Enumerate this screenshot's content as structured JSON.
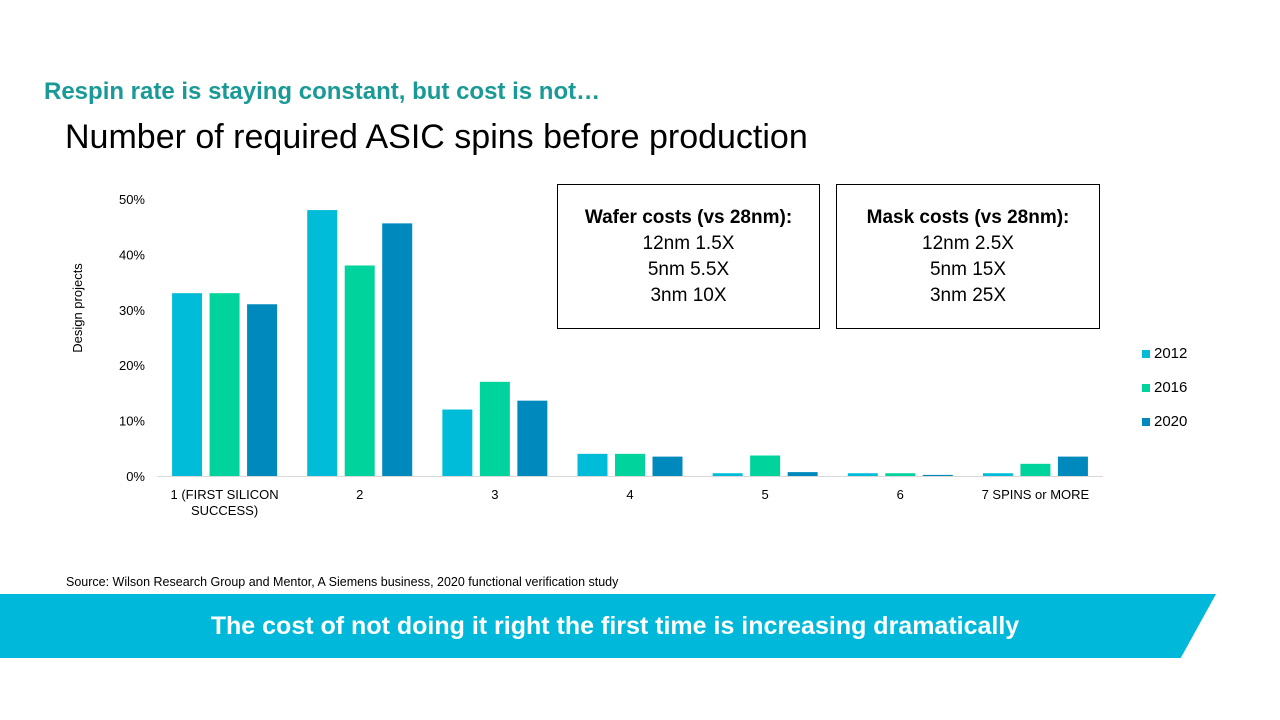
{
  "slide": {
    "subtitle": "Respin rate is staying constant, but cost is not…",
    "title": "Number of required ASIC spins before production",
    "source": "Source: Wilson Research Group and Mentor, A Siemens business, 2020 functional verification study",
    "banner": "The cost of not doing it right the first time is increasing dramatically"
  },
  "wafer_box": {
    "heading": "Wafer costs (vs 28nm):",
    "lines": [
      "12nm 1.5X",
      "5nm 5.5X",
      "3nm 10X"
    ]
  },
  "mask_box": {
    "heading": "Mask costs (vs 28nm):",
    "lines": [
      "12nm 2.5X",
      "5nm 15X",
      "3nm 25X"
    ]
  },
  "colors": {
    "subtitle": "#1a9a96",
    "banner": "#00b8d9",
    "series": [
      "#00bcd8",
      "#00d49c",
      "#0089bd"
    ]
  },
  "chart_data": {
    "type": "bar",
    "ylabel": "Design projects",
    "xlabel": "",
    "ylim": [
      0,
      50
    ],
    "yticks": [
      0,
      10,
      20,
      30,
      40,
      50
    ],
    "ytick_labels": [
      "0%",
      "10%",
      "20%",
      "30%",
      "40%",
      "50%"
    ],
    "categories": [
      "1 (FIRST SILICON SUCCESS)",
      "2",
      "3",
      "4",
      "5",
      "6",
      "7 SPINS or MORE"
    ],
    "series": [
      {
        "name": "2012",
        "values": [
          33,
          48,
          12,
          4,
          0.5,
          0.5,
          0.5
        ]
      },
      {
        "name": "2016",
        "values": [
          33,
          38,
          17,
          4,
          3.7,
          0.5,
          2.2
        ]
      },
      {
        "name": "2020",
        "values": [
          31,
          45.6,
          13.6,
          3.5,
          0.7,
          0.2,
          3.5
        ]
      }
    ],
    "legend": "right",
    "grid": false
  }
}
